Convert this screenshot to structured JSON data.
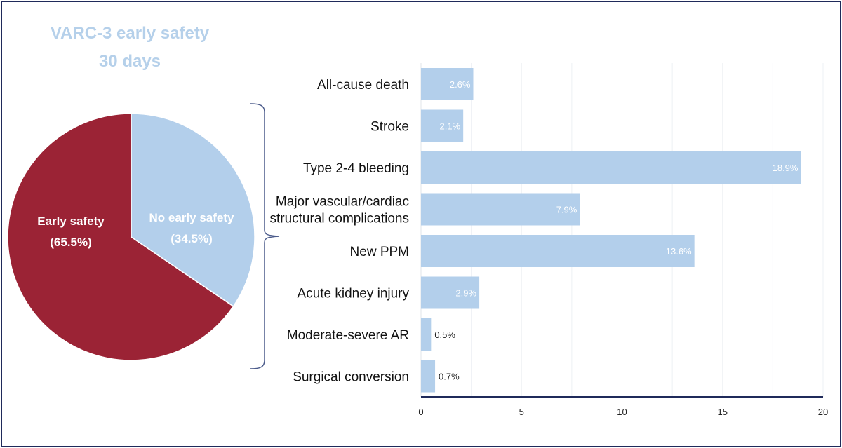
{
  "pie": {
    "title_line1": "VARC-3 early safety",
    "title_line2": "30  days",
    "colors": {
      "title": "#b5d0ea"
    },
    "chart_data": {
      "type": "pie",
      "slices": [
        {
          "label": "Early safety",
          "value_label": "(65.5%)",
          "value": 65.5,
          "color": "#9b2335"
        },
        {
          "label": "No early safety",
          "value_label": "(34.5%)",
          "value": 34.5,
          "color": "#b3cfeb"
        }
      ]
    }
  },
  "bar": {
    "chart_data": {
      "type": "bar",
      "orientation": "horizontal",
      "categories": [
        [
          "All-cause death"
        ],
        [
          "Stroke"
        ],
        [
          "Type 2-4 bleeding"
        ],
        [
          "Major vascular/cardiac",
          "structural complications"
        ],
        [
          "New PPM"
        ],
        [
          "Acute kidney injury"
        ],
        [
          "Moderate-severe AR"
        ],
        [
          "Surgical conversion"
        ]
      ],
      "values": [
        2.6,
        2.1,
        18.9,
        7.9,
        13.6,
        2.9,
        0.5,
        0.7
      ],
      "value_labels": [
        "2.6%",
        "2.1%",
        "18.9%",
        "7.9%",
        "13.6%",
        "2.9%",
        "0.5%",
        "0.7%"
      ],
      "xlim": [
        0,
        20
      ],
      "xticks": [
        "0",
        "5",
        "10",
        "15",
        "20"
      ],
      "grid": true,
      "bar_color": "#b3cfeb",
      "axis_color": "#1f2a5a"
    }
  }
}
